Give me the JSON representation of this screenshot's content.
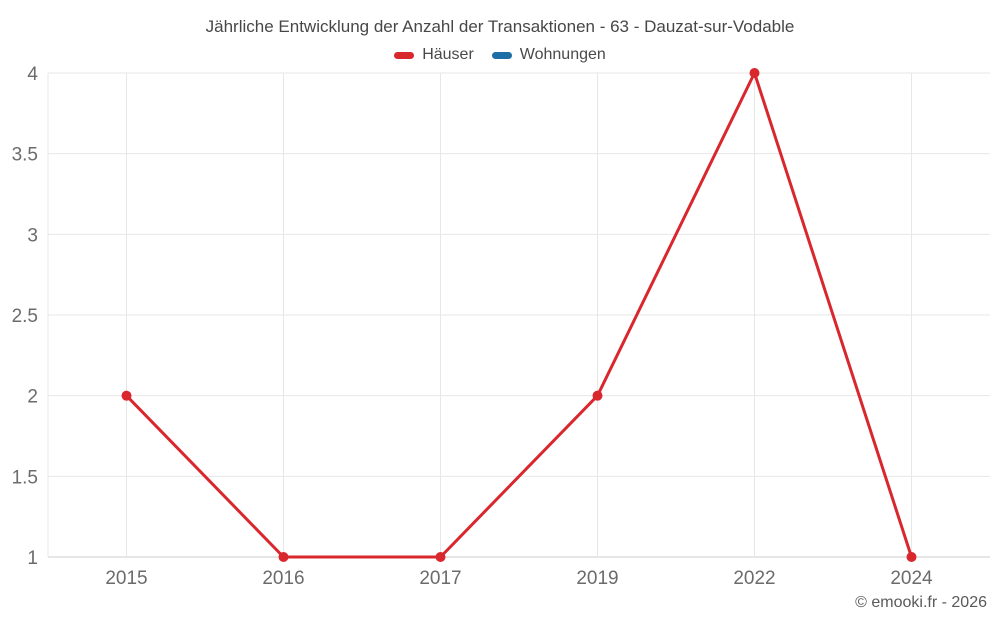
{
  "page": {
    "background": "#ffffff"
  },
  "header": {
    "title": "Jährliche Entwicklung der Anzahl der Transaktionen - 63 - Dauzat-sur-Vodable"
  },
  "legend": {
    "items": [
      {
        "label": "Häuser",
        "color": "#d9272e"
      },
      {
        "label": "Wohnungen",
        "color": "#1c6ea4"
      }
    ]
  },
  "footer": {
    "copyright": "© emooki.fr - 2026"
  },
  "chart_data": {
    "type": "line",
    "title": "Jährliche Entwicklung der Anzahl der Transaktionen - 63 - Dauzat-sur-Vodable",
    "categories": [
      "2015",
      "2016",
      "2017",
      "2019",
      "2022",
      "2024"
    ],
    "series": [
      {
        "name": "Häuser",
        "color": "#d9272e",
        "values": [
          2,
          1,
          1,
          2,
          4,
          1
        ]
      },
      {
        "name": "Wohnungen",
        "color": "#1c6ea4",
        "values": []
      }
    ],
    "xlabel": "",
    "ylabel": "",
    "ylim": [
      1,
      4
    ],
    "yticks": [
      1,
      1.5,
      2,
      2.5,
      3,
      3.5,
      4
    ],
    "grid": true,
    "legend_position": "top",
    "marker": "circle",
    "colors": {
      "gridline": "#e7e7e7",
      "axis_line": "#cccccc",
      "tick_label": "#6b6b6b",
      "title": "#474747"
    }
  }
}
